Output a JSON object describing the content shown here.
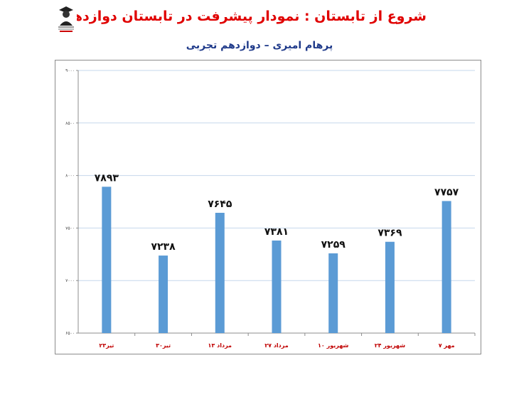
{
  "header": {
    "title": "شروع از تابستان : نمودار پیشرفت در تابستان دوازدهم",
    "subtitle": "پرهام امیری – دوازدهم تجربی",
    "logo_icon": "student-portrait-logo-icon"
  },
  "colors": {
    "title": "#e00000",
    "subtitle": "#1f3a8a",
    "bar": "#5b9bd5",
    "gridline": "#c6d7ec",
    "category_label": "#c00000"
  },
  "chart_data": {
    "type": "bar",
    "categories": [
      "۲۳تیر",
      "۳۰تیر",
      "۱۳ مرداد",
      "۲۷ مرداد",
      "۱۰ شهریور",
      "۲۴ شهریور",
      "۷ مهر"
    ],
    "values": [
      7893,
      7238,
      7645,
      7381,
      7259,
      7369,
      7757
    ],
    "value_labels": [
      "۷۸۹۳",
      "۷۲۳۸",
      "۷۶۴۵",
      "۷۳۸۱",
      "۷۲۵۹",
      "۷۳۶۹",
      "۷۷۵۷"
    ],
    "ylim": [
      6500,
      9000
    ],
    "yticks": [
      6500,
      7000,
      7500,
      8000,
      8500,
      9000
    ],
    "ytick_labels": [
      "۶۵۰۰",
      "۷۰۰۰",
      "۷۵۰۰",
      "۸۰۰۰",
      "۸۵۰۰",
      "۹۰۰۰"
    ],
    "grid": true,
    "legend": "none",
    "title": "",
    "xlabel": "",
    "ylabel": ""
  }
}
